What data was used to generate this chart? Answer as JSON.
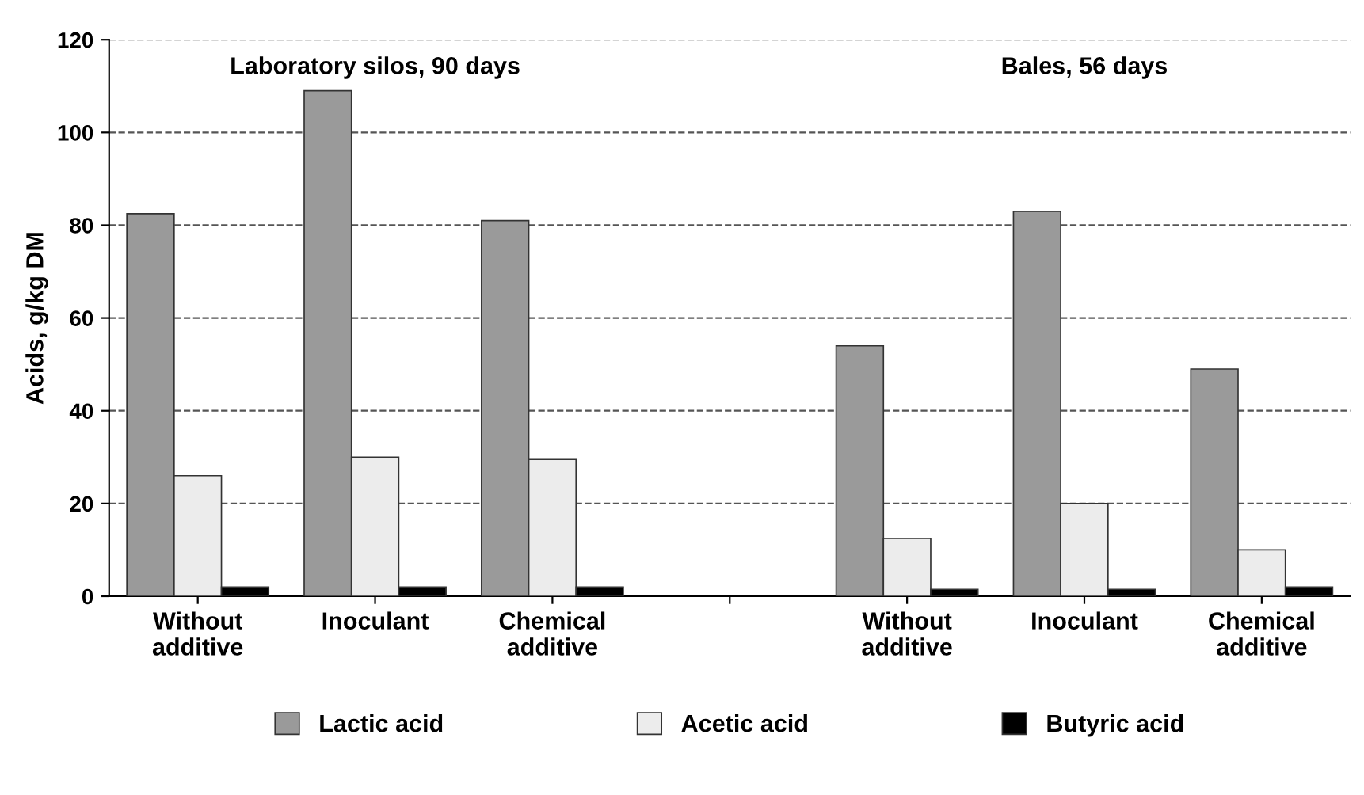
{
  "chart_data": {
    "type": "bar",
    "ylabel": "Acids, g/kg DM",
    "categories": [
      "Without\nadditive",
      "Inoculant",
      "Chemical\nadditive",
      null,
      "Without\nadditive",
      "Inoculant",
      "Chemical\nadditive"
    ],
    "series": [
      {
        "name": "Lactic acid",
        "color": "#9a9a9a",
        "values": [
          82.5,
          109,
          81,
          null,
          54,
          83,
          49
        ]
      },
      {
        "name": "Acetic acid",
        "color": "#ececec",
        "values": [
          26,
          30,
          29.5,
          null,
          12.5,
          20,
          10
        ]
      },
      {
        "name": "Butyric acid",
        "color": "#000000",
        "values": [
          2,
          2,
          2,
          null,
          1.5,
          1.5,
          2
        ]
      }
    ],
    "annotations": [
      "Laboratory silos, 90 days",
      "Bales, 56 days"
    ],
    "ylim": [
      0,
      120
    ],
    "yticks": [
      0,
      20,
      40,
      60,
      80,
      100,
      120
    ],
    "grid": "y",
    "legend": "bottom"
  }
}
